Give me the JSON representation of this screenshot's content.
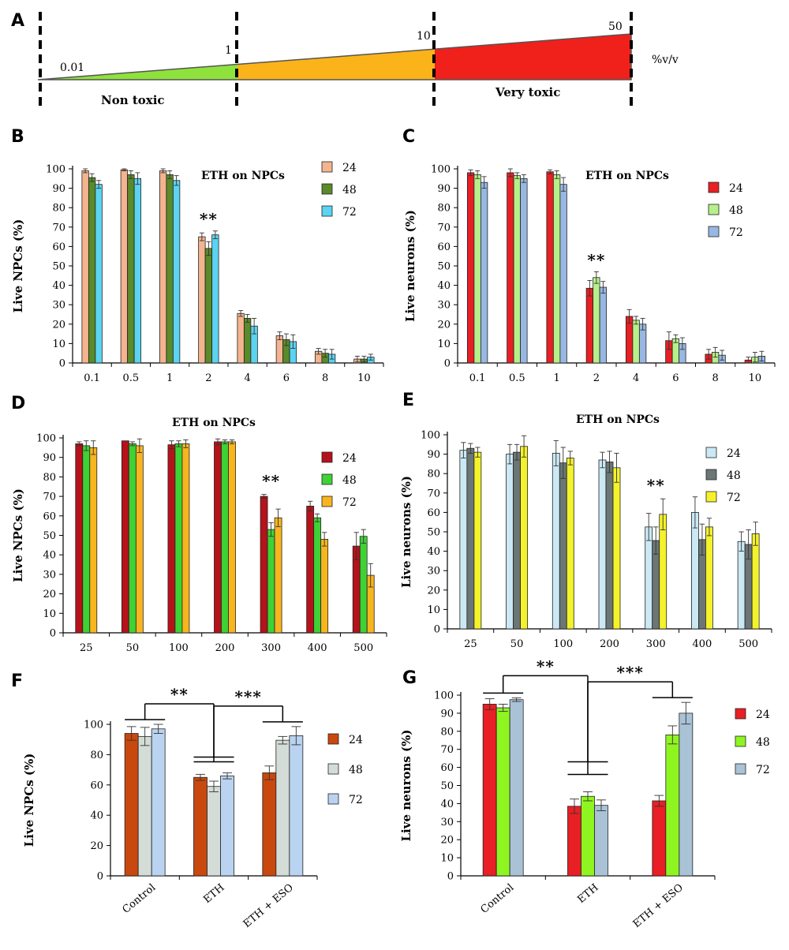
{
  "colors": {
    "B": [
      "#f4b48f",
      "#5a8a2a",
      "#5bd3f1"
    ],
    "C": [
      "#e81f24",
      "#b6f089",
      "#98b7e3"
    ],
    "D": [
      "#b5121b",
      "#3ed234",
      "#f7b61e"
    ],
    "E": [
      "#cbe9f5",
      "#6b7675",
      "#f4f22a"
    ],
    "F": [
      "#c8480e",
      "#d4dcd8",
      "#b9d3f0"
    ],
    "G": [
      "#e81f24",
      "#8ff521",
      "#a9c2d6"
    ]
  },
  "panelA": {
    "label": "A",
    "ticks": [
      "0.01",
      "1",
      "10",
      "50"
    ],
    "unit": "%v/v",
    "zones": [
      "Non toxic",
      "Very toxic"
    ],
    "zone_colors": [
      "#8fe23c",
      "#fbb31a",
      "#f0201a"
    ]
  },
  "chart_data": [
    {
      "panel": "B",
      "type": "bar",
      "title": "ETH on NPCs",
      "ylabel": "Live NPCs (%)",
      "xlabel": "",
      "ylim": [
        0,
        100
      ],
      "yticks": [
        0,
        10,
        20,
        30,
        40,
        50,
        60,
        70,
        80,
        90,
        100
      ],
      "categories": [
        "0.1",
        "0.5",
        "1",
        "2",
        "4",
        "6",
        "8",
        "10"
      ],
      "series": [
        {
          "name": "24",
          "values": [
            99,
            99.5,
            99,
            65,
            25.5,
            14,
            6,
            2
          ],
          "errors": [
            1,
            0.5,
            1,
            2,
            1.5,
            2,
            1.5,
            1.5
          ]
        },
        {
          "name": "48",
          "values": [
            95.5,
            97,
            97,
            59,
            23,
            12,
            5,
            2
          ],
          "errors": [
            2,
            2,
            2,
            3.5,
            2,
            3,
            2,
            1.5
          ]
        },
        {
          "name": "72",
          "values": [
            92,
            95,
            94,
            66,
            19,
            11,
            4.5,
            3
          ],
          "errors": [
            2,
            3,
            2.5,
            2,
            4,
            3.5,
            2.5,
            1.5
          ]
        }
      ],
      "annotations": [
        {
          "text": "**",
          "category": "2"
        }
      ]
    },
    {
      "panel": "C",
      "type": "bar",
      "title": "ETH on NPCs",
      "ylabel": "Live neurons (%)",
      "xlabel": "",
      "ylim": [
        0,
        100
      ],
      "yticks": [
        0,
        10,
        20,
        30,
        40,
        50,
        60,
        70,
        80,
        90,
        100
      ],
      "categories": [
        "0.1",
        "0.5",
        "1",
        "2",
        "4",
        "6",
        "8",
        "10"
      ],
      "series": [
        {
          "name": "24",
          "values": [
            98,
            98,
            98.5,
            38.5,
            24,
            11.5,
            4.5,
            1.5
          ],
          "errors": [
            1.5,
            2,
            1,
            4,
            3.5,
            4.5,
            2.5,
            1.5
          ]
        },
        {
          "name": "48",
          "values": [
            97,
            96.5,
            97,
            44,
            22,
            12.5,
            5.5,
            3
          ],
          "errors": [
            2,
            1.5,
            2,
            3,
            2,
            2,
            2.5,
            2.5
          ]
        },
        {
          "name": "72",
          "values": [
            93,
            95,
            92,
            39,
            20,
            10,
            4,
            3.5
          ],
          "errors": [
            3,
            2,
            3.5,
            3,
            3,
            3,
            2.5,
            2.5
          ]
        }
      ],
      "annotations": [
        {
          "text": "**",
          "category": "2"
        }
      ]
    },
    {
      "panel": "D",
      "type": "bar",
      "title": "ETH on NPCs",
      "ylabel": "Live NPCs (%)",
      "xlabel": "",
      "ylim": [
        0,
        100
      ],
      "yticks": [
        0,
        10,
        20,
        30,
        40,
        50,
        60,
        70,
        80,
        90,
        100
      ],
      "categories": [
        "25",
        "50",
        "100",
        "200",
        "300",
        "400",
        "500"
      ],
      "series": [
        {
          "name": "24",
          "values": [
            97,
            98.5,
            96.5,
            98,
            70,
            65,
            44.5
          ],
          "errors": [
            1,
            0,
            2,
            1.5,
            1,
            2.5,
            7
          ]
        },
        {
          "name": "48",
          "values": [
            96,
            97,
            97,
            98,
            53,
            59,
            49.5
          ],
          "errors": [
            2.5,
            1,
            1.5,
            1,
            3.5,
            2,
            3.5
          ]
        },
        {
          "name": "72",
          "values": [
            95,
            96,
            97,
            98,
            59,
            48,
            29.5
          ],
          "errors": [
            3.5,
            3.5,
            2,
            1,
            4.5,
            3.5,
            6
          ]
        }
      ],
      "annotations": [
        {
          "text": "**",
          "category": "300"
        }
      ]
    },
    {
      "panel": "E",
      "type": "bar",
      "title": "ETH on NPCs",
      "ylabel": "Live neurons (%)",
      "xlabel": "",
      "ylim": [
        0,
        100
      ],
      "yticks": [
        0,
        10,
        20,
        30,
        40,
        50,
        60,
        70,
        80,
        90,
        100
      ],
      "categories": [
        "25",
        "50",
        "100",
        "200",
        "300",
        "400",
        "500"
      ],
      "series": [
        {
          "name": "24",
          "values": [
            92,
            90,
            90.5,
            87,
            52.5,
            60,
            45
          ],
          "errors": [
            4,
            5,
            6.5,
            4,
            7,
            8,
            5
          ]
        },
        {
          "name": "48",
          "values": [
            93,
            91,
            85.5,
            86,
            45.5,
            46,
            43.5
          ],
          "errors": [
            2.5,
            4,
            8,
            5.5,
            7,
            8,
            7.5
          ]
        },
        {
          "name": "72",
          "values": [
            91,
            94,
            88,
            83,
            59,
            52.5,
            49
          ],
          "errors": [
            2.5,
            5.5,
            3.5,
            7.5,
            8,
            4.5,
            6
          ]
        }
      ],
      "annotations": [
        {
          "text": "**",
          "category": "300"
        }
      ]
    },
    {
      "panel": "F",
      "type": "bar",
      "title": "",
      "ylabel": "Live NPCs (%)",
      "xlabel": "",
      "ylim": [
        0,
        100
      ],
      "yticks": [
        0,
        20,
        40,
        60,
        80,
        100
      ],
      "categories": [
        "Control",
        "ETH",
        "ETH + ESO"
      ],
      "series": [
        {
          "name": "24",
          "values": [
            94,
            65,
            68
          ],
          "errors": [
            4.5,
            2,
            4.5
          ]
        },
        {
          "name": "48",
          "values": [
            92,
            59,
            89.5
          ],
          "errors": [
            6,
            3.5,
            2.5
          ]
        },
        {
          "name": "72",
          "values": [
            97,
            66,
            92.5
          ],
          "errors": [
            3,
            2,
            6
          ]
        }
      ],
      "annotations": [
        {
          "text": "**",
          "between": [
            "Control",
            "ETH"
          ]
        },
        {
          "text": "***",
          "between": [
            "ETH",
            "ETH + ESO"
          ]
        }
      ]
    },
    {
      "panel": "G",
      "type": "bar",
      "title": "",
      "ylabel": "Live neurons (%)",
      "xlabel": "",
      "ylim": [
        0,
        100
      ],
      "yticks": [
        0,
        10,
        20,
        30,
        40,
        50,
        60,
        70,
        80,
        90,
        100
      ],
      "categories": [
        "Control",
        "ETH",
        "ETH + ESO"
      ],
      "series": [
        {
          "name": "24",
          "values": [
            95,
            38.5,
            41.5
          ],
          "errors": [
            3,
            4,
            3
          ]
        },
        {
          "name": "48",
          "values": [
            93,
            44,
            78
          ],
          "errors": [
            2,
            2.5,
            5
          ]
        },
        {
          "name": "72",
          "values": [
            97.5,
            39,
            90
          ],
          "errors": [
            1,
            3,
            6
          ]
        }
      ],
      "annotations": [
        {
          "text": "**",
          "between": [
            "Control",
            "ETH"
          ]
        },
        {
          "text": "***",
          "between": [
            "ETH",
            "ETH + ESO"
          ]
        }
      ]
    }
  ]
}
